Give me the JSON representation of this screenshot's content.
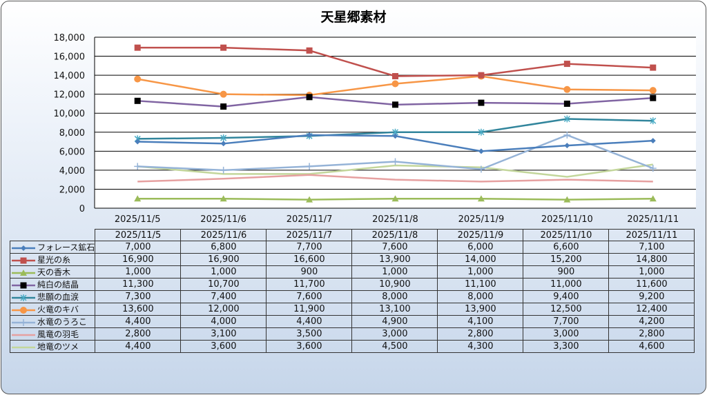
{
  "chart_data": {
    "type": "line",
    "title": "天星郷素材",
    "categories": [
      "2025/11/5",
      "2025/11/6",
      "2025/11/7",
      "2025/11/8",
      "2025/11/9",
      "2025/11/10",
      "2025/11/11"
    ],
    "ylim": [
      0,
      18000
    ],
    "yticks": [
      "0",
      "2,000",
      "4,000",
      "6,000",
      "8,000",
      "10,000",
      "12,000",
      "14,000",
      "16,000",
      "18,000"
    ],
    "grid": true,
    "legend": "data-table",
    "series": [
      {
        "name": "フォレース鉱石",
        "color": "#4a7ebb",
        "line": "#4a7ebb",
        "marker": "diamond",
        "values": [
          7000,
          6800,
          7700,
          7600,
          6000,
          6600,
          7100
        ],
        "labels": [
          "7,000",
          "6,800",
          "7,700",
          "7,600",
          "6,000",
          "6,600",
          "7,100"
        ]
      },
      {
        "name": "星光の糸",
        "color": "#c0504d",
        "line": "#c0504d",
        "marker": "square",
        "values": [
          16900,
          16900,
          16600,
          13900,
          14000,
          15200,
          14800
        ],
        "labels": [
          "16,900",
          "16,900",
          "16,600",
          "13,900",
          "14,000",
          "15,200",
          "14,800"
        ]
      },
      {
        "name": "天の香木",
        "color": "#9bbb59",
        "line": "#9bbb59",
        "marker": "triangle",
        "values": [
          1000,
          1000,
          900,
          1000,
          1000,
          900,
          1000
        ],
        "labels": [
          "1,000",
          "1,000",
          "900",
          "1,000",
          "1,000",
          "900",
          "1,000"
        ]
      },
      {
        "name": "純白の結晶",
        "color": "#000000",
        "line": "#8064a2",
        "marker": "square",
        "values": [
          11300,
          10700,
          11700,
          10900,
          11100,
          11000,
          11600
        ],
        "labels": [
          "11,300",
          "10,700",
          "11,700",
          "10,900",
          "11,100",
          "11,000",
          "11,600"
        ]
      },
      {
        "name": "悲願の血涙",
        "color": "#4bacc6",
        "line": "#31859c",
        "marker": "star",
        "values": [
          7300,
          7400,
          7600,
          8000,
          8000,
          9400,
          9200
        ],
        "labels": [
          "7,300",
          "7,400",
          "7,600",
          "8,000",
          "8,000",
          "9,400",
          "9,200"
        ]
      },
      {
        "name": "火竜のキバ",
        "color": "#f79646",
        "line": "#f79646",
        "marker": "circle",
        "values": [
          13600,
          12000,
          11900,
          13100,
          13900,
          12500,
          12400
        ],
        "labels": [
          "13,600",
          "12,000",
          "11,900",
          "13,100",
          "13,900",
          "12,500",
          "12,400"
        ]
      },
      {
        "name": "水竜のうろこ",
        "color": "#95b3d7",
        "line": "#95b3d7",
        "marker": "plus",
        "values": [
          4400,
          4000,
          4400,
          4900,
          4100,
          7700,
          4200
        ],
        "labels": [
          "4,400",
          "4,000",
          "4,400",
          "4,900",
          "4,100",
          "7,700",
          "4,200"
        ]
      },
      {
        "name": "風竜の羽毛",
        "color": "#e6a0a0",
        "line": "#e6a0a0",
        "marker": "none",
        "values": [
          2800,
          3100,
          3500,
          3000,
          2800,
          3000,
          2800
        ],
        "labels": [
          "2,800",
          "3,100",
          "3,500",
          "3,000",
          "2,800",
          "3,000",
          "2,800"
        ]
      },
      {
        "name": "地竜のツメ",
        "color": "#c3d69b",
        "line": "#c3d69b",
        "marker": "none",
        "values": [
          4400,
          3600,
          3600,
          4500,
          4300,
          3300,
          4600
        ],
        "labels": [
          "4,400",
          "3,600",
          "3,600",
          "4,500",
          "4,300",
          "3,300",
          "4,600"
        ]
      }
    ]
  }
}
